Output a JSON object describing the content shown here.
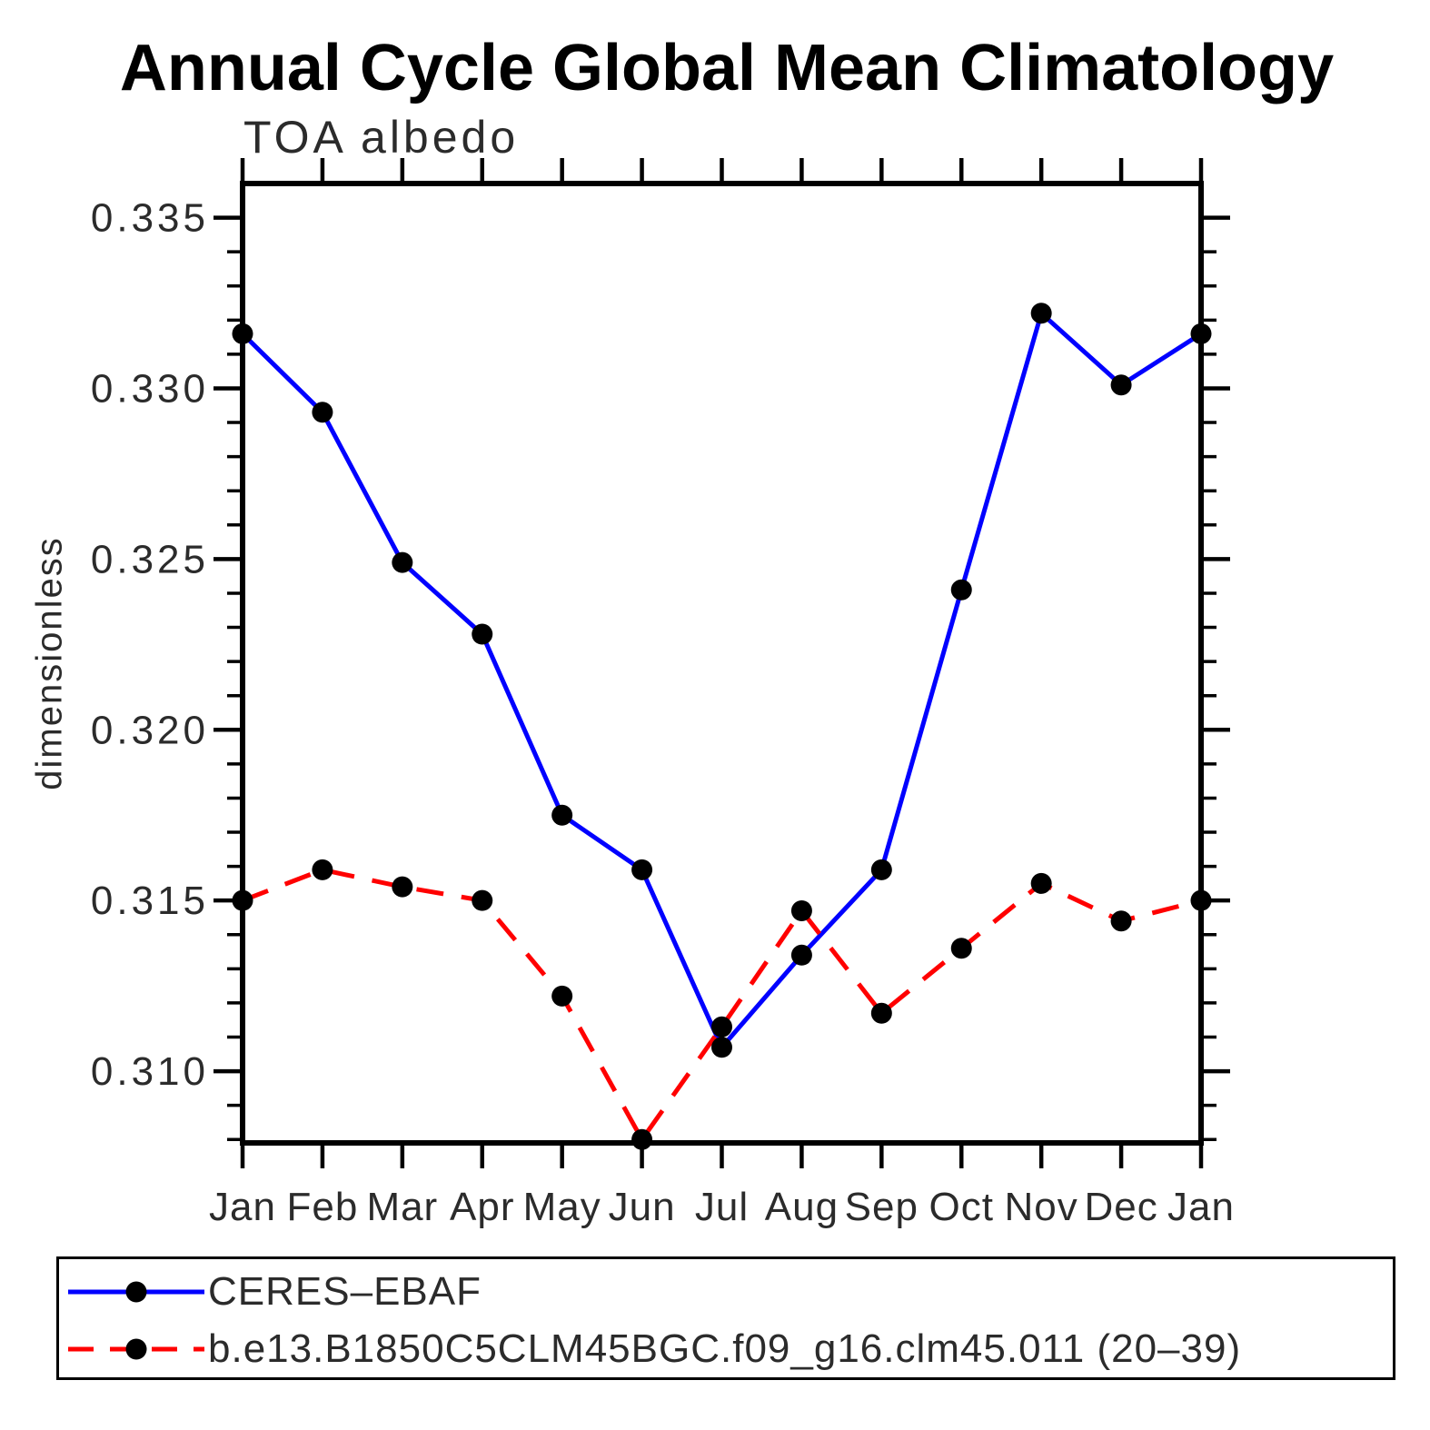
{
  "title": "Annual Cycle Global Mean Climatology",
  "subtitle": "TOA albedo",
  "ylabel": "dimensionless",
  "colors": {
    "obs_line": "#0000ff",
    "model_line": "#ff0000",
    "marker": "#000000",
    "axis": "#000000",
    "text": "#2b2b2b",
    "background": "#ffffff"
  },
  "legend": {
    "items": [
      {
        "label": "CERES–EBAF",
        "color": "#0000ff",
        "style": "solid"
      },
      {
        "label": "b.e13.B1850C5CLM45BGC.f09_g16.clm45.011 (20–39)",
        "color": "#ff0000",
        "style": "dashed"
      }
    ]
  },
  "chart_data": {
    "type": "line",
    "title": "Annual Cycle Global Mean Climatology",
    "subtitle": "TOA albedo",
    "xlabel": "",
    "ylabel": "dimensionless",
    "categories": [
      "Jan",
      "Feb",
      "Mar",
      "Apr",
      "May",
      "Jun",
      "Jul",
      "Aug",
      "Sep",
      "Oct",
      "Nov",
      "Dec",
      "Jan"
    ],
    "series": [
      {
        "name": "CERES–EBAF",
        "color": "#0000ff",
        "line_style": "solid",
        "marker": "circle",
        "values": [
          0.3316,
          0.3293,
          0.3249,
          0.3228,
          0.3175,
          0.3159,
          0.3107,
          0.3134,
          0.3159,
          0.3241,
          0.3322,
          0.3301,
          0.3316
        ]
      },
      {
        "name": "b.e13.B1850C5CLM45BGC.f09_g16.clm45.011 (20–39)",
        "color": "#ff0000",
        "line_style": "dashed",
        "marker": "circle",
        "values": [
          0.315,
          0.3159,
          0.3154,
          0.315,
          0.3122,
          0.308,
          0.3113,
          0.3147,
          0.3117,
          0.3136,
          0.3155,
          0.3144,
          0.315
        ]
      }
    ],
    "ylim": [
      0.3079,
      0.336
    ],
    "yticks_major": [
      0.31,
      0.315,
      0.32,
      0.325,
      0.33,
      0.335
    ],
    "ytick_labels": [
      "0.310",
      "0.315",
      "0.320",
      "0.325",
      "0.330",
      "0.335"
    ],
    "y_minor_step": 0.001,
    "grid": false,
    "legend_position": "bottom-left-box"
  }
}
